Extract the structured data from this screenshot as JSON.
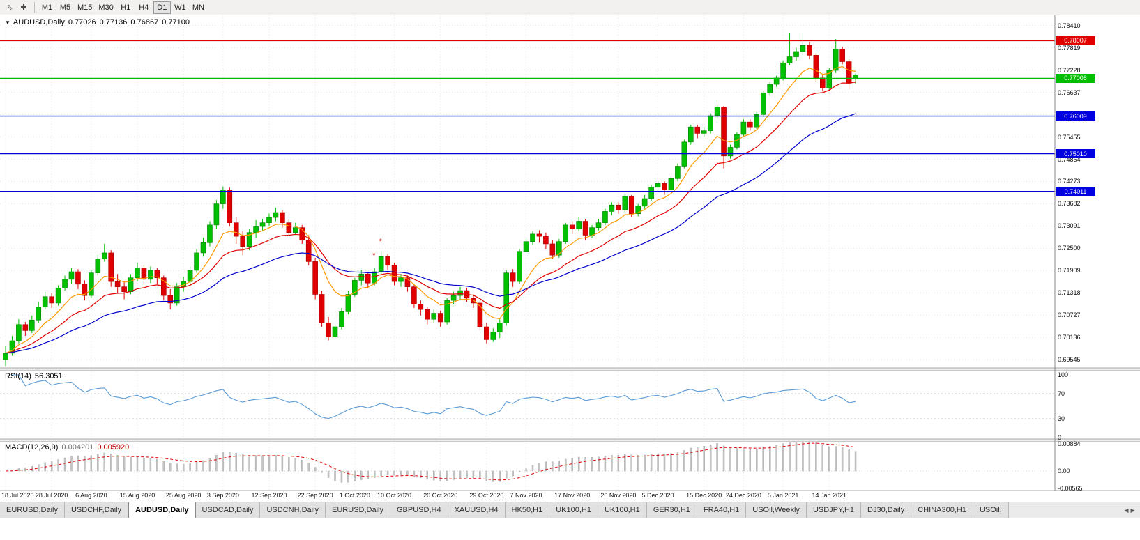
{
  "toolbar": {
    "icons": [
      {
        "name": "cursor-icon",
        "glyph": "⇖"
      },
      {
        "name": "crosshair-icon",
        "glyph": "✚"
      }
    ],
    "timeframes": [
      "M1",
      "M5",
      "M15",
      "M30",
      "H1",
      "H4",
      "D1",
      "W1",
      "MN"
    ],
    "active_timeframe": "D1"
  },
  "chart_header": {
    "collapse_icon": "▼",
    "symbol": "AUDUSD,Daily",
    "open": "0.77026",
    "high": "0.77136",
    "low": "0.76867",
    "close": "0.77100"
  },
  "price_axis": {
    "ticks": [
      "0.78410",
      "0.77819",
      "0.77228",
      "0.76637",
      "0.76046",
      "0.75455",
      "0.74864",
      "0.74273",
      "0.73682",
      "0.73091",
      "0.72500",
      "0.71909",
      "0.71318",
      "0.70727",
      "0.70136",
      "0.69545"
    ]
  },
  "hlines": [
    {
      "price": 0.78007,
      "color": "#E10000",
      "width": 1.4,
      "label": "0.78007",
      "badge": true,
      "text_color": "#FFFFFF"
    },
    {
      "price": 0.771,
      "color": "#9C9C9C",
      "width": 1,
      "label": "",
      "badge": false,
      "text_color": "#FFFFFF"
    },
    {
      "price": 0.77008,
      "color": "#00BE00",
      "width": 1.4,
      "label": "0.77008",
      "badge": true,
      "text_color": "#FFFFFF"
    },
    {
      "price": 0.76009,
      "color": "#0000E1",
      "width": 1.4,
      "label": "0.76009",
      "badge": true,
      "text_color": "#FFFFFF"
    },
    {
      "price": 0.7501,
      "color": "#0000E1",
      "width": 1.4,
      "label": "0.75010",
      "badge": true,
      "text_color": "#FFFFFF"
    },
    {
      "price": 0.74011,
      "color": "#0000E1",
      "width": 1.4,
      "label": "0.74011",
      "badge": true,
      "text_color": "#FFFFFF"
    }
  ],
  "rsi": {
    "label": "RSI(14)",
    "value": "56.3051",
    "period": 14,
    "ticks": [
      "100",
      "70",
      "30",
      "0"
    ],
    "levels": [
      70,
      30
    ],
    "line_color": "#5B9BD5"
  },
  "macd": {
    "label": "MACD(12,26,9)",
    "value_main": "0.004201",
    "value_signal": "0.005920",
    "fast": 12,
    "slow": 26,
    "signal": 9,
    "ticks": [
      "0.00884",
      "0.00",
      "-0.00565"
    ],
    "hist_color": "#C6C6C6",
    "hist_edge_color": "#9E9E9E",
    "signal_color": "#E00000"
  },
  "date_axis": {
    "labels": [
      "18 Jul 2020",
      "28 Jul 2020",
      "6 Aug 2020",
      "15 Aug 2020",
      "25 Aug 2020",
      "3 Sep 2020",
      "12 Sep 2020",
      "22 Sep 2020",
      "1 Oct 2020",
      "10 Oct 2020",
      "20 Oct 2020",
      "29 Oct 2020",
      "7 Nov 2020",
      "17 Nov 2020",
      "26 Nov 2020",
      "5 Dec 2020",
      "15 Dec 2020",
      "24 Dec 2020",
      "5 Jan 2021",
      "14 Jan 2021"
    ],
    "indices": [
      0,
      7,
      13,
      20,
      27,
      33,
      40,
      47,
      53,
      59,
      66,
      73,
      79,
      86,
      93,
      99,
      106,
      112,
      118,
      125
    ]
  },
  "tabs": {
    "items": [
      "EURUSD,Daily",
      "USDCHF,Daily",
      "AUDUSD,Daily",
      "USDCAD,Daily",
      "USDCNH,Daily",
      "EURUSD,Daily",
      "GBPUSD,H4",
      "XAUUSD,H4",
      "HK50,H1",
      "UK100,H1",
      "UK100,H1",
      "GER30,H1",
      "FRA40,H1",
      "USOil,Weekly",
      "USDJPY,H1",
      "DJ30,Daily",
      "CHINA300,H1",
      "USOil,"
    ],
    "active_index": 2,
    "scroll_left_icon": "◀",
    "scroll_right_icon": "▶"
  },
  "chart_data": {
    "type": "candlestick",
    "symbol": "AUDUSD",
    "period": "Daily",
    "ylim": [
      0.6933,
      0.7868
    ],
    "up_color": "#00C000",
    "up_edge": "#008000",
    "down_color": "#E00000",
    "down_edge": "#A80000",
    "ma": [
      {
        "name": "ema-fast",
        "period": 8,
        "color": "#FF9900"
      },
      {
        "name": "ema-medium",
        "period": 17,
        "color": "#E00000"
      },
      {
        "name": "ema-slow",
        "period": 34,
        "color": "#0000CC"
      }
    ],
    "markers": [
      {
        "index": 56,
        "price": 0.7225,
        "glyph": "*",
        "color": "#D00000"
      },
      {
        "index": 57,
        "price": 0.7262,
        "glyph": "*",
        "color": "#D00000"
      }
    ],
    "ohlc": [
      [
        0.6955,
        0.6992,
        0.6938,
        0.6972
      ],
      [
        0.6972,
        0.7018,
        0.6965,
        0.7005
      ],
      [
        0.7005,
        0.7062,
        0.6998,
        0.7048
      ],
      [
        0.7048,
        0.7055,
        0.7018,
        0.7032
      ],
      [
        0.7032,
        0.7072,
        0.7025,
        0.706
      ],
      [
        0.706,
        0.7108,
        0.7052,
        0.7095
      ],
      [
        0.7095,
        0.7135,
        0.7088,
        0.7122
      ],
      [
        0.7122,
        0.7132,
        0.7092,
        0.7105
      ],
      [
        0.7105,
        0.7152,
        0.7098,
        0.7145
      ],
      [
        0.7145,
        0.7178,
        0.7138,
        0.7168
      ],
      [
        0.7168,
        0.7198,
        0.7155,
        0.7188
      ],
      [
        0.7188,
        0.7195,
        0.7142,
        0.7155
      ],
      [
        0.7155,
        0.7165,
        0.7112,
        0.7125
      ],
      [
        0.7125,
        0.7192,
        0.7118,
        0.7185
      ],
      [
        0.7185,
        0.7232,
        0.7178,
        0.7222
      ],
      [
        0.7222,
        0.7262,
        0.7215,
        0.7238
      ],
      [
        0.7238,
        0.7245,
        0.7148,
        0.7162
      ],
      [
        0.7162,
        0.7182,
        0.7132,
        0.7148
      ],
      [
        0.7148,
        0.7162,
        0.7115,
        0.7135
      ],
      [
        0.7135,
        0.7182,
        0.7128,
        0.7172
      ],
      [
        0.7172,
        0.7212,
        0.7162,
        0.7198
      ],
      [
        0.7198,
        0.7205,
        0.7152,
        0.7168
      ],
      [
        0.7168,
        0.7202,
        0.7158,
        0.7192
      ],
      [
        0.7192,
        0.7198,
        0.7155,
        0.7172
      ],
      [
        0.7172,
        0.7178,
        0.7112,
        0.7125
      ],
      [
        0.7125,
        0.7142,
        0.7088,
        0.7105
      ],
      [
        0.7105,
        0.7158,
        0.7098,
        0.7148
      ],
      [
        0.7148,
        0.7175,
        0.7135,
        0.7162
      ],
      [
        0.7162,
        0.7202,
        0.7152,
        0.7192
      ],
      [
        0.7192,
        0.7248,
        0.7185,
        0.7238
      ],
      [
        0.7238,
        0.7278,
        0.7228,
        0.7265
      ],
      [
        0.7265,
        0.7322,
        0.7255,
        0.7312
      ],
      [
        0.7312,
        0.7378,
        0.7302,
        0.7368
      ],
      [
        0.7368,
        0.7414,
        0.7355,
        0.7405
      ],
      [
        0.7405,
        0.7412,
        0.7308,
        0.7318
      ],
      [
        0.7318,
        0.7332,
        0.7262,
        0.7282
      ],
      [
        0.7282,
        0.7295,
        0.7232,
        0.7255
      ],
      [
        0.7255,
        0.7302,
        0.7245,
        0.7292
      ],
      [
        0.7292,
        0.7325,
        0.7278,
        0.7308
      ],
      [
        0.7308,
        0.7328,
        0.7295,
        0.7318
      ],
      [
        0.7318,
        0.7342,
        0.7308,
        0.7332
      ],
      [
        0.7332,
        0.7358,
        0.7322,
        0.7345
      ],
      [
        0.7345,
        0.7352,
        0.7305,
        0.7318
      ],
      [
        0.7318,
        0.7328,
        0.7282,
        0.7292
      ],
      [
        0.7292,
        0.7318,
        0.7285,
        0.7305
      ],
      [
        0.7305,
        0.7312,
        0.7262,
        0.7272
      ],
      [
        0.7272,
        0.7285,
        0.7205,
        0.7215
      ],
      [
        0.7215,
        0.7225,
        0.7115,
        0.7128
      ],
      [
        0.7128,
        0.7138,
        0.7042,
        0.7052
      ],
      [
        0.7052,
        0.7068,
        0.7006,
        0.7015
      ],
      [
        0.7015,
        0.7052,
        0.7008,
        0.7042
      ],
      [
        0.7042,
        0.7092,
        0.7035,
        0.7082
      ],
      [
        0.7082,
        0.7138,
        0.7075,
        0.7128
      ],
      [
        0.7128,
        0.7172,
        0.7122,
        0.7165
      ],
      [
        0.7165,
        0.7192,
        0.7152,
        0.7182
      ],
      [
        0.7182,
        0.7188,
        0.7145,
        0.7158
      ],
      [
        0.7158,
        0.7198,
        0.7152,
        0.7188
      ],
      [
        0.7188,
        0.7243,
        0.7182,
        0.7228
      ],
      [
        0.7228,
        0.7235,
        0.7192,
        0.7205
      ],
      [
        0.7205,
        0.7212,
        0.7152,
        0.7162
      ],
      [
        0.7162,
        0.7182,
        0.7148,
        0.7172
      ],
      [
        0.7172,
        0.7178,
        0.7135,
        0.7148
      ],
      [
        0.7148,
        0.7155,
        0.7092,
        0.7102
      ],
      [
        0.7102,
        0.7112,
        0.7072,
        0.7088
      ],
      [
        0.7088,
        0.7095,
        0.7048,
        0.7062
      ],
      [
        0.7062,
        0.7088,
        0.7052,
        0.7078
      ],
      [
        0.7078,
        0.7085,
        0.7042,
        0.7055
      ],
      [
        0.7055,
        0.7118,
        0.7048,
        0.7112
      ],
      [
        0.7112,
        0.7135,
        0.7102,
        0.7125
      ],
      [
        0.7125,
        0.7148,
        0.7115,
        0.7138
      ],
      [
        0.7138,
        0.7145,
        0.7108,
        0.7118
      ],
      [
        0.7118,
        0.7128,
        0.7092,
        0.7105
      ],
      [
        0.7105,
        0.7112,
        0.7032,
        0.7042
      ],
      [
        0.7042,
        0.7052,
        0.6998,
        0.7008
      ],
      [
        0.7008,
        0.7038,
        0.7002,
        0.7028
      ],
      [
        0.7028,
        0.7062,
        0.7012,
        0.7052
      ],
      [
        0.7052,
        0.7192,
        0.7045,
        0.7185
      ],
      [
        0.7185,
        0.7195,
        0.7148,
        0.7162
      ],
      [
        0.7162,
        0.7248,
        0.7155,
        0.7242
      ],
      [
        0.7242,
        0.7275,
        0.7232,
        0.7268
      ],
      [
        0.7268,
        0.7295,
        0.7258,
        0.7288
      ],
      [
        0.7288,
        0.7298,
        0.7265,
        0.7282
      ],
      [
        0.7282,
        0.7292,
        0.7248,
        0.7262
      ],
      [
        0.7262,
        0.7272,
        0.7222,
        0.7232
      ],
      [
        0.7232,
        0.7275,
        0.7225,
        0.7268
      ],
      [
        0.7268,
        0.7318,
        0.7262,
        0.7312
      ],
      [
        0.7312,
        0.7322,
        0.7288,
        0.7302
      ],
      [
        0.7302,
        0.7332,
        0.7295,
        0.7322
      ],
      [
        0.7322,
        0.7328,
        0.7272,
        0.7285
      ],
      [
        0.7285,
        0.7312,
        0.7278,
        0.7305
      ],
      [
        0.7305,
        0.7328,
        0.7298,
        0.7318
      ],
      [
        0.7318,
        0.7355,
        0.7312,
        0.7348
      ],
      [
        0.7348,
        0.7372,
        0.7338,
        0.7365
      ],
      [
        0.7365,
        0.7372,
        0.7342,
        0.7352
      ],
      [
        0.7352,
        0.7395,
        0.7345,
        0.7388
      ],
      [
        0.7388,
        0.7392,
        0.7332,
        0.7342
      ],
      [
        0.7342,
        0.7368,
        0.7335,
        0.7362
      ],
      [
        0.7362,
        0.7392,
        0.7355,
        0.7382
      ],
      [
        0.7382,
        0.7418,
        0.7375,
        0.7412
      ],
      [
        0.7412,
        0.7432,
        0.7402,
        0.7422
      ],
      [
        0.7422,
        0.7428,
        0.7392,
        0.7405
      ],
      [
        0.7405,
        0.7442,
        0.7398,
        0.7435
      ],
      [
        0.7435,
        0.7475,
        0.7428,
        0.7468
      ],
      [
        0.7468,
        0.7538,
        0.7462,
        0.7532
      ],
      [
        0.7532,
        0.7578,
        0.7525,
        0.7572
      ],
      [
        0.7572,
        0.7578,
        0.7542,
        0.7555
      ],
      [
        0.7555,
        0.7572,
        0.7545,
        0.7562
      ],
      [
        0.7562,
        0.7608,
        0.7555,
        0.7602
      ],
      [
        0.7602,
        0.7632,
        0.7595,
        0.7625
      ],
      [
        0.7625,
        0.7628,
        0.7462,
        0.7495
      ],
      [
        0.7495,
        0.7525,
        0.7488,
        0.7518
      ],
      [
        0.7518,
        0.7558,
        0.7512,
        0.7552
      ],
      [
        0.7552,
        0.7592,
        0.7545,
        0.7585
      ],
      [
        0.7585,
        0.7592,
        0.7562,
        0.7572
      ],
      [
        0.7572,
        0.7612,
        0.7565,
        0.7605
      ],
      [
        0.7605,
        0.7668,
        0.7598,
        0.7662
      ],
      [
        0.7662,
        0.7692,
        0.7655,
        0.7685
      ],
      [
        0.7685,
        0.7708,
        0.7678,
        0.7702
      ],
      [
        0.7702,
        0.7748,
        0.7695,
        0.7742
      ],
      [
        0.7742,
        0.782,
        0.7735,
        0.7758
      ],
      [
        0.7758,
        0.7782,
        0.7748,
        0.7772
      ],
      [
        0.7772,
        0.782,
        0.7762,
        0.7788
      ],
      [
        0.7788,
        0.7798,
        0.7752,
        0.7762
      ],
      [
        0.7762,
        0.7768,
        0.7692,
        0.7702
      ],
      [
        0.7702,
        0.7712,
        0.7666,
        0.7675
      ],
      [
        0.7675,
        0.7728,
        0.7668,
        0.7722
      ],
      [
        0.7722,
        0.7805,
        0.7715,
        0.7778
      ],
      [
        0.7778,
        0.7785,
        0.7738,
        0.7745
      ],
      [
        0.7745,
        0.7752,
        0.7672,
        0.7688
      ],
      [
        0.77026,
        0.77136,
        0.76867,
        0.771
      ]
    ]
  }
}
